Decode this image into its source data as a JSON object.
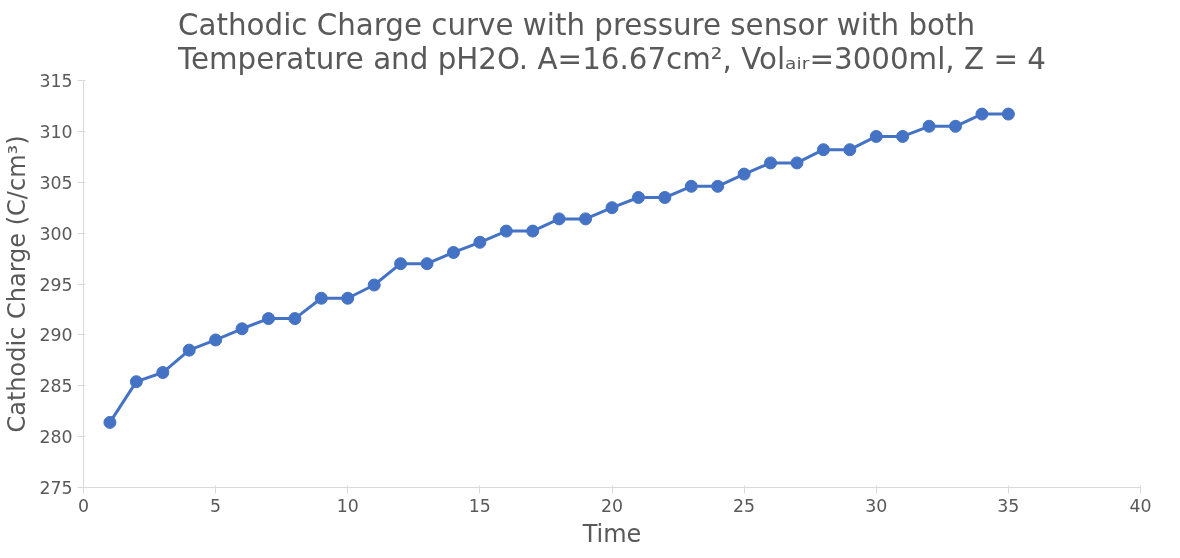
{
  "chart_data": {
    "type": "line",
    "title": "Cathodic Charge curve with pressure sensor with both\nTemperature and pH2O. A=16.67cm², Volₐᵢᵣ=3000ml, Z = 4",
    "xlabel": "Time",
    "ylabel": "Cathodic Charge (C/cm³)",
    "x": [
      1,
      2,
      3,
      4,
      5,
      6,
      7,
      8,
      9,
      10,
      11,
      12,
      13,
      14,
      15,
      16,
      17,
      18,
      19,
      20,
      21,
      22,
      23,
      24,
      25,
      26,
      27,
      28,
      29,
      30,
      31,
      32,
      33,
      34,
      35
    ],
    "series": [
      {
        "color": "#4472c4",
        "values": [
          281.4,
          285.4,
          286.3,
          288.5,
          289.5,
          290.6,
          291.6,
          291.6,
          293.6,
          293.6,
          294.9,
          297.0,
          297.0,
          298.1,
          299.1,
          300.2,
          300.2,
          301.4,
          301.4,
          302.5,
          303.5,
          303.5,
          304.6,
          304.6,
          305.8,
          306.9,
          306.9,
          308.2,
          308.2,
          309.5,
          309.5,
          310.5,
          310.5,
          311.7,
          311.7
        ]
      }
    ],
    "xlim": [
      0,
      40
    ],
    "xticks": [
      0,
      5,
      10,
      15,
      20,
      25,
      30,
      35,
      40
    ],
    "ylim": [
      275,
      315
    ],
    "yticks": [
      275,
      280,
      285,
      290,
      295,
      300,
      305,
      310,
      315
    ],
    "grid": false,
    "marker": "circle",
    "line_style": "solid"
  }
}
